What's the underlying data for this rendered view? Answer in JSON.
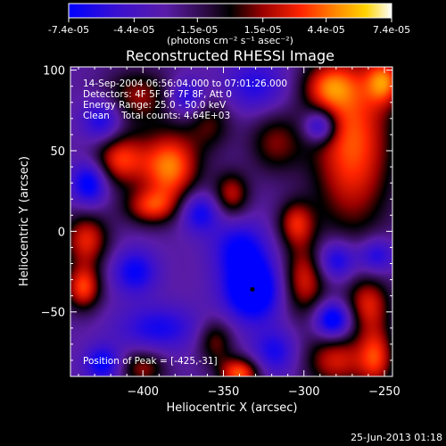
{
  "colorbar": {
    "tick_labels": [
      "-7.4e-05",
      "-4.4e-05",
      "-1.5e-05",
      "1.5e-05",
      "4.4e-05",
      "7.4e-05"
    ],
    "tick_values": [
      -7.4e-05,
      -4.4e-05,
      -1.5e-05,
      1.5e-05,
      4.4e-05,
      7.4e-05
    ],
    "range": [
      -7.4e-05,
      7.4e-05
    ],
    "units_label": "(photons cm⁻² s⁻¹ asec⁻²)",
    "colormap": "blue-purple-black-red-orange-yellow-white"
  },
  "chart_data": {
    "type": "heatmap",
    "title": "Reconstructed RHESSI Image",
    "xlabel": "Heliocentric X (arcsec)",
    "ylabel": "Heliocentric Y (arcsec)",
    "xlim": [
      -445,
      -245
    ],
    "ylim": [
      -90,
      102
    ],
    "x_ticks": [
      -400,
      -350,
      -300,
      -250
    ],
    "x_tick_labels": [
      "−400",
      "−350",
      "−300",
      "−250"
    ],
    "y_ticks": [
      -50,
      0,
      50,
      100
    ],
    "y_tick_labels": [
      "−50",
      "0",
      "50",
      "100"
    ],
    "grid": false,
    "annotations": [
      "14-Sep-2004 06:56:04.000 to 07:01:26.000",
      "Detectors: 4F 5F 6F 7F 8F, Att 0",
      "Energy Range: 25.0 - 50.0 keV",
      "Clean    Total counts: 4.64E+03"
    ],
    "peak_label": "Position of Peak = [-425,-31]",
    "peak": {
      "x": -425,
      "y": -31
    },
    "marker": {
      "x": -332,
      "y": -36
    },
    "blobs": [
      {
        "x": -403,
        "y": 84,
        "sx": 15,
        "sy": 12,
        "a": 4.2e-05
      },
      {
        "x": -373,
        "y": 83,
        "sx": 8,
        "sy": 8,
        "a": -4e-05
      },
      {
        "x": -358,
        "y": 67,
        "sx": 10,
        "sy": 12,
        "a": 3.2e-05
      },
      {
        "x": -330,
        "y": 90,
        "sx": 14,
        "sy": 12,
        "a": -3.4e-05
      },
      {
        "x": -318,
        "y": 55,
        "sx": 12,
        "sy": 14,
        "a": 3.8e-05
      },
      {
        "x": -285,
        "y": 90,
        "sx": 12,
        "sy": 10,
        "a": 4.4e-05
      },
      {
        "x": -270,
        "y": 55,
        "sx": 18,
        "sy": 40,
        "a": 6.8e-05
      },
      {
        "x": -250,
        "y": 93,
        "sx": 8,
        "sy": 10,
        "a": 5.6e-05
      },
      {
        "x": -290,
        "y": 65,
        "sx": 7,
        "sy": 7,
        "a": -5.8e-05
      },
      {
        "x": -425,
        "y": 68,
        "sx": 9,
        "sy": 10,
        "a": -4.4e-05
      },
      {
        "x": -415,
        "y": 45,
        "sx": 12,
        "sy": 12,
        "a": 6e-05
      },
      {
        "x": -383,
        "y": 40,
        "sx": 13,
        "sy": 16,
        "a": 7.4e-05
      },
      {
        "x": -433,
        "y": 30,
        "sx": 8,
        "sy": 10,
        "a": -5.6e-05
      },
      {
        "x": -395,
        "y": 15,
        "sx": 12,
        "sy": 8,
        "a": 5e-05
      },
      {
        "x": -365,
        "y": 12,
        "sx": 9,
        "sy": 9,
        "a": -4.6e-05
      },
      {
        "x": -345,
        "y": 23,
        "sx": 8,
        "sy": 10,
        "a": 4.8e-05
      },
      {
        "x": -435,
        "y": -5,
        "sx": 10,
        "sy": 12,
        "a": 5.6e-05
      },
      {
        "x": -437,
        "y": -35,
        "sx": 8,
        "sy": 10,
        "a": 6.2e-05
      },
      {
        "x": -405,
        "y": -25,
        "sx": 10,
        "sy": 10,
        "a": -4.4e-05
      },
      {
        "x": -340,
        "y": -10,
        "sx": 12,
        "sy": 12,
        "a": -4.2e-05
      },
      {
        "x": -332,
        "y": -36,
        "sx": 13,
        "sy": 14,
        "a": -7.2e-05
      },
      {
        "x": -305,
        "y": 5,
        "sx": 8,
        "sy": 10,
        "a": 5e-05
      },
      {
        "x": -300,
        "y": -30,
        "sx": 10,
        "sy": 16,
        "a": 5.4e-05
      },
      {
        "x": -280,
        "y": -18,
        "sx": 9,
        "sy": 9,
        "a": -5e-05
      },
      {
        "x": -260,
        "y": -45,
        "sx": 10,
        "sy": 12,
        "a": 5e-05
      },
      {
        "x": -282,
        "y": -55,
        "sx": 8,
        "sy": 8,
        "a": -6.4e-05
      },
      {
        "x": -255,
        "y": -15,
        "sx": 8,
        "sy": 8,
        "a": -4.2e-05
      },
      {
        "x": -390,
        "y": -60,
        "sx": 18,
        "sy": 10,
        "a": -3.8e-05
      },
      {
        "x": -400,
        "y": -85,
        "sx": 10,
        "sy": 8,
        "a": 4.2e-05
      },
      {
        "x": -425,
        "y": -82,
        "sx": 8,
        "sy": 8,
        "a": -4.6e-05
      },
      {
        "x": -355,
        "y": -68,
        "sx": 8,
        "sy": 10,
        "a": 4e-05
      },
      {
        "x": -340,
        "y": -88,
        "sx": 9,
        "sy": 7,
        "a": 6.8e-05
      },
      {
        "x": -318,
        "y": -75,
        "sx": 10,
        "sy": 10,
        "a": -3.8e-05
      },
      {
        "x": -280,
        "y": -80,
        "sx": 14,
        "sy": 12,
        "a": 5.2e-05
      },
      {
        "x": -255,
        "y": -78,
        "sx": 8,
        "sy": 14,
        "a": 5.4e-05
      }
    ],
    "background": -2.8e-05
  },
  "timestamp": "25-Jun-2013 01:18"
}
